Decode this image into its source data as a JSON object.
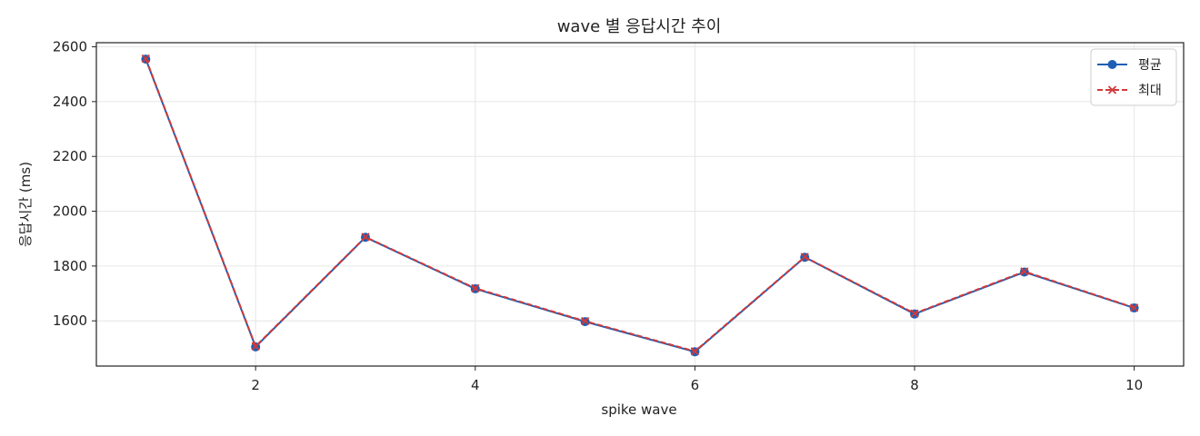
{
  "chart_data": {
    "type": "line",
    "title": "wave 별 응답시간 추이",
    "xlabel": "spike wave",
    "ylabel": "응답시간 (ms)",
    "x": [
      1,
      2,
      3,
      4,
      5,
      6,
      7,
      8,
      9,
      10
    ],
    "xlim": [
      0.55,
      10.45
    ],
    "ylim": [
      1435,
      2615
    ],
    "xticks": [
      2,
      4,
      6,
      8,
      10
    ],
    "yticks": [
      1600,
      1800,
      2000,
      2200,
      2400,
      2600
    ],
    "grid": true,
    "legend_position": "top-right",
    "series": [
      {
        "name": "평균",
        "values": [
          2555,
          1505,
          1905,
          1717,
          1597,
          1487,
          1832,
          1625,
          1778,
          1647
        ],
        "color": "#1f5fb4",
        "marker": "circle",
        "line_style": "solid"
      },
      {
        "name": "최대",
        "values": [
          2557,
          1507,
          1906,
          1719,
          1599,
          1489,
          1833,
          1627,
          1780,
          1648
        ],
        "color": "#d13a3a",
        "marker": "x",
        "line_style": "dashed"
      }
    ]
  }
}
